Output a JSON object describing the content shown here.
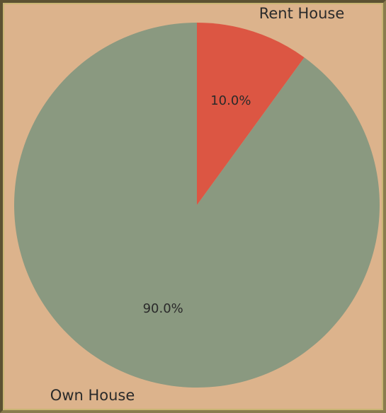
{
  "chart_data": {
    "type": "pie",
    "title": "",
    "slices": [
      {
        "label": "Rent House",
        "value": 10.0,
        "pct_label": "10.0%",
        "color": "#dc5643"
      },
      {
        "label": "Own House",
        "value": 90.0,
        "pct_label": "90.0%",
        "color": "#8a9980"
      }
    ],
    "start_angle_deg": 90,
    "direction": "clockwise",
    "background_color": "#dcb38c",
    "frame_color": "#5c5132"
  }
}
